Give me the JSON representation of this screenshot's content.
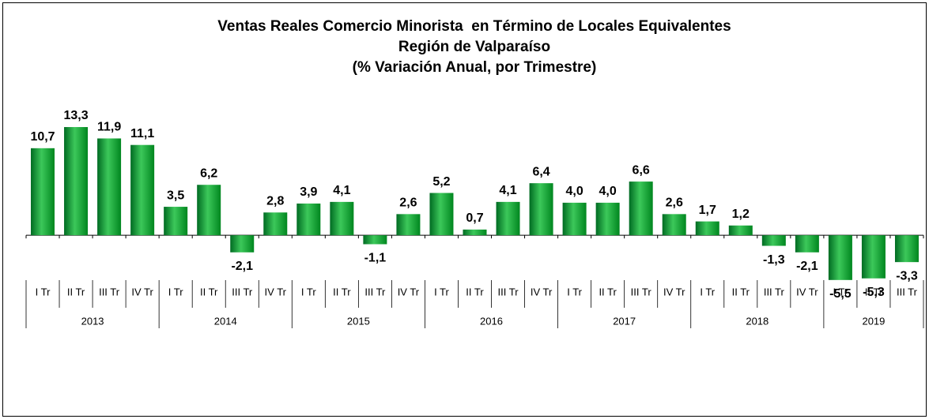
{
  "chart_data": {
    "type": "bar",
    "title": [
      "Ventas Reales Comercio Minorista  en Término de Locales Equivalentes",
      "Región de Valparaíso",
      "(% Variación Anual, por Trimestre)"
    ],
    "color": "#00a03c",
    "ylim": [
      -6,
      15
    ],
    "groups": [
      {
        "label": "2013",
        "categories": [
          "I Tr",
          "II Tr",
          "III Tr",
          "IV Tr"
        ],
        "values": [
          10.7,
          13.3,
          11.9,
          11.1
        ],
        "value_labels": [
          "10,7",
          "13,3",
          "11,9",
          "11,1"
        ]
      },
      {
        "label": "2014",
        "categories": [
          "I Tr",
          "II Tr",
          "III Tr",
          "IV Tr"
        ],
        "values": [
          3.5,
          6.2,
          -2.1,
          2.8
        ],
        "value_labels": [
          "3,5",
          "6,2",
          "-2,1",
          "2,8"
        ]
      },
      {
        "label": "2015",
        "categories": [
          "I Tr",
          "II Tr",
          "III Tr",
          "IV Tr"
        ],
        "values": [
          3.9,
          4.1,
          -1.1,
          2.6
        ],
        "value_labels": [
          "3,9",
          "4,1",
          "-1,1",
          "2,6"
        ]
      },
      {
        "label": "2016",
        "categories": [
          "I Tr",
          "II Tr",
          "III Tr",
          "IV Tr"
        ],
        "values": [
          5.2,
          0.7,
          4.1,
          6.4
        ],
        "value_labels": [
          "5,2",
          "0,7",
          "4,1",
          "6,4"
        ]
      },
      {
        "label": "2017",
        "categories": [
          "I Tr",
          "II Tr",
          "III Tr",
          "IV Tr"
        ],
        "values": [
          4.0,
          4.0,
          6.6,
          2.6
        ],
        "value_labels": [
          "4,0",
          "4,0",
          "6,6",
          "2,6"
        ]
      },
      {
        "label": "2018",
        "categories": [
          "I Tr",
          "II Tr",
          "III Tr",
          "IV Tr"
        ],
        "values": [
          1.7,
          1.2,
          -1.3,
          -2.1
        ],
        "value_labels": [
          "1,7",
          "1,2",
          "-1,3",
          "-2,1"
        ]
      },
      {
        "label": "2019",
        "categories": [
          "I Tr",
          "II Tr",
          "III Tr"
        ],
        "values": [
          -5.5,
          -5.3,
          -3.3
        ],
        "value_labels": [
          "-5,5",
          "-5,3",
          "-3,3"
        ]
      }
    ]
  }
}
